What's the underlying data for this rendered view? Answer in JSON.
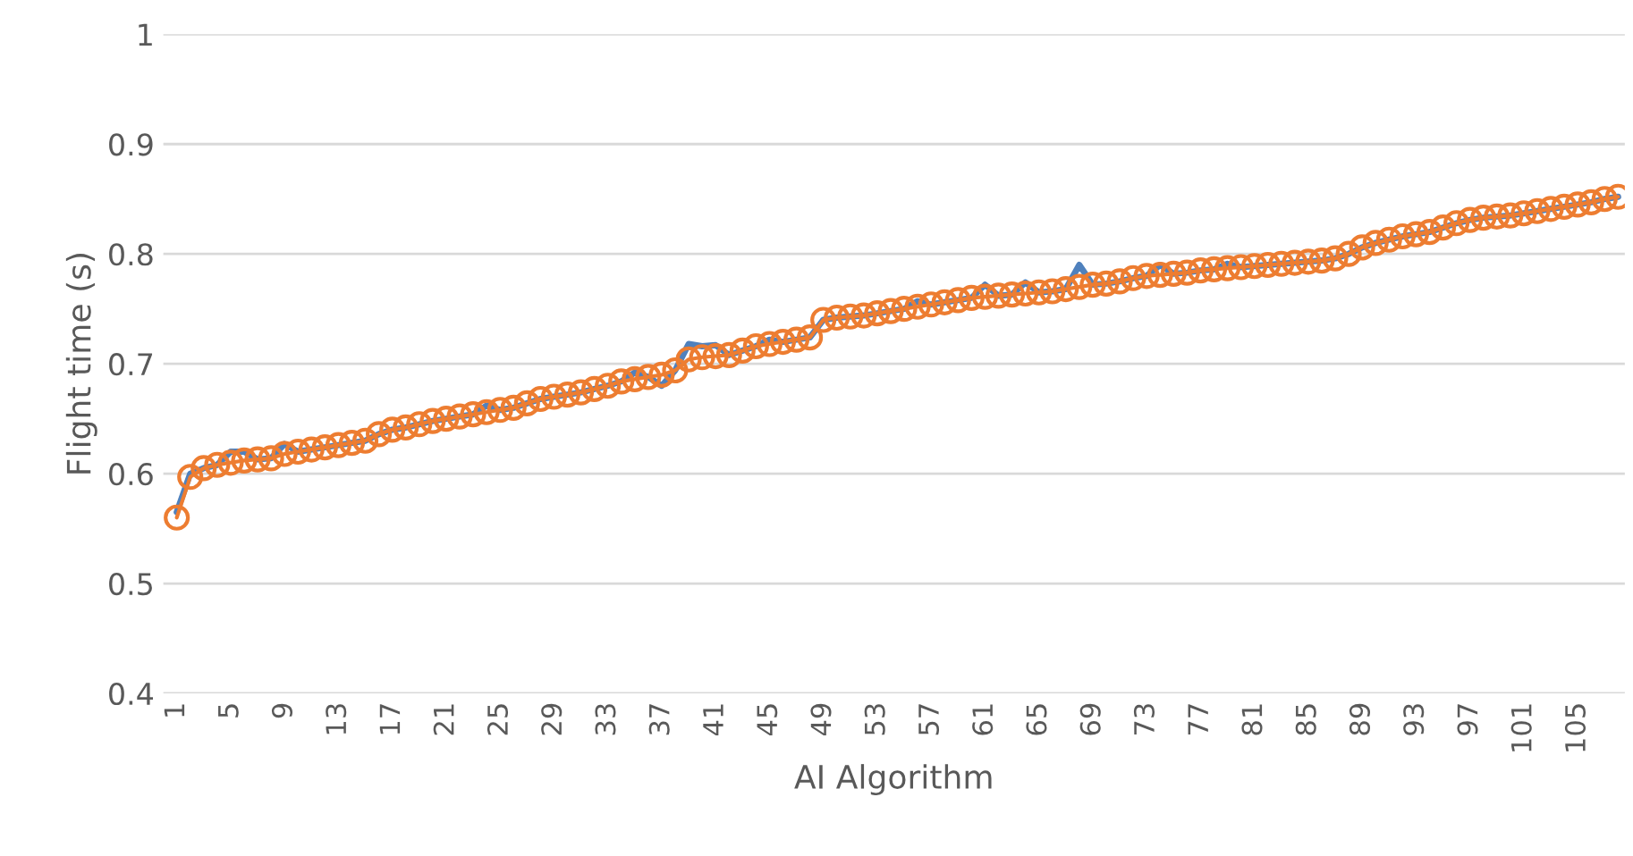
{
  "chart_data": {
    "type": "line",
    "xlabel": "AI Algorithm",
    "ylabel": "Flight time (s)",
    "categories": [
      "1",
      null,
      null,
      null,
      "5",
      null,
      null,
      null,
      "9",
      null,
      null,
      null,
      "13",
      null,
      null,
      null,
      "17",
      null,
      null,
      null,
      "21",
      null,
      null,
      null,
      "25",
      null,
      null,
      null,
      "29",
      null,
      null,
      null,
      "33",
      null,
      null,
      null,
      "37",
      null,
      null,
      null,
      "41",
      null,
      null,
      null,
      "45",
      null,
      null,
      null,
      "49",
      null,
      null,
      null,
      "53",
      null,
      null,
      null,
      "57",
      null,
      null,
      null,
      "61",
      null,
      null,
      null,
      "65",
      null,
      null,
      null,
      "69",
      null,
      null,
      null,
      "73",
      null,
      null,
      null,
      "77",
      null,
      null,
      null,
      "81",
      null,
      null,
      null,
      "85",
      null,
      null,
      null,
      "89",
      null,
      null,
      null,
      "93",
      null,
      null,
      null,
      "97",
      null,
      null,
      null,
      "101",
      null,
      null,
      null,
      "105",
      null,
      null,
      null
    ],
    "series": [
      {
        "color": "#4f81bd",
        "marker": "none",
        "values": [
          0.565,
          0.6,
          0.605,
          0.608,
          0.62,
          0.62,
          0.613,
          0.614,
          0.627,
          0.62,
          0.622,
          0.624,
          0.626,
          0.628,
          0.63,
          0.636,
          0.64,
          0.642,
          0.645,
          0.648,
          0.65,
          0.652,
          0.654,
          0.662,
          0.658,
          0.66,
          0.664,
          0.668,
          0.67,
          0.672,
          0.674,
          0.677,
          0.68,
          0.684,
          0.692,
          0.688,
          0.68,
          0.694,
          0.718,
          0.716,
          0.717,
          0.708,
          0.712,
          0.716,
          0.722,
          0.72,
          0.722,
          0.724,
          0.74,
          0.742,
          0.743,
          0.744,
          0.746,
          0.748,
          0.75,
          0.757,
          0.754,
          0.756,
          0.758,
          0.76,
          0.772,
          0.762,
          0.763,
          0.774,
          0.765,
          0.766,
          0.768,
          0.79,
          0.772,
          0.773,
          0.775,
          0.778,
          0.78,
          0.79,
          0.782,
          0.783,
          0.785,
          0.786,
          0.791,
          0.788,
          0.789,
          0.79,
          0.791,
          0.792,
          0.793,
          0.794,
          0.796,
          0.8,
          0.806,
          0.81,
          0.813,
          0.816,
          0.818,
          0.82,
          0.824,
          0.828,
          0.831,
          0.833,
          0.834,
          0.835,
          0.837,
          0.839,
          0.841,
          0.843,
          0.845,
          0.847,
          0.85,
          0.852
        ]
      },
      {
        "color": "#ed7d31",
        "marker": "circle",
        "values": [
          0.56,
          0.597,
          0.605,
          0.608,
          0.61,
          0.612,
          0.613,
          0.614,
          0.618,
          0.62,
          0.622,
          0.624,
          0.626,
          0.628,
          0.63,
          0.636,
          0.64,
          0.642,
          0.645,
          0.648,
          0.65,
          0.652,
          0.654,
          0.656,
          0.658,
          0.66,
          0.664,
          0.668,
          0.67,
          0.672,
          0.674,
          0.677,
          0.68,
          0.684,
          0.686,
          0.688,
          0.69,
          0.694,
          0.704,
          0.706,
          0.707,
          0.708,
          0.712,
          0.716,
          0.718,
          0.72,
          0.722,
          0.724,
          0.74,
          0.742,
          0.743,
          0.744,
          0.746,
          0.748,
          0.75,
          0.752,
          0.754,
          0.756,
          0.758,
          0.76,
          0.761,
          0.762,
          0.763,
          0.764,
          0.765,
          0.766,
          0.768,
          0.77,
          0.772,
          0.773,
          0.775,
          0.778,
          0.78,
          0.781,
          0.782,
          0.783,
          0.785,
          0.786,
          0.787,
          0.788,
          0.789,
          0.79,
          0.791,
          0.792,
          0.793,
          0.794,
          0.796,
          0.8,
          0.806,
          0.81,
          0.813,
          0.816,
          0.818,
          0.82,
          0.824,
          0.828,
          0.831,
          0.833,
          0.834,
          0.835,
          0.837,
          0.839,
          0.841,
          0.843,
          0.845,
          0.847,
          0.85,
          0.852
        ]
      }
    ],
    "ylim": [
      0.4,
      1
    ],
    "yticks": [
      0.4,
      0.5,
      0.6,
      0.7,
      0.8,
      0.9,
      1
    ],
    "grid": "y",
    "legend": false
  }
}
